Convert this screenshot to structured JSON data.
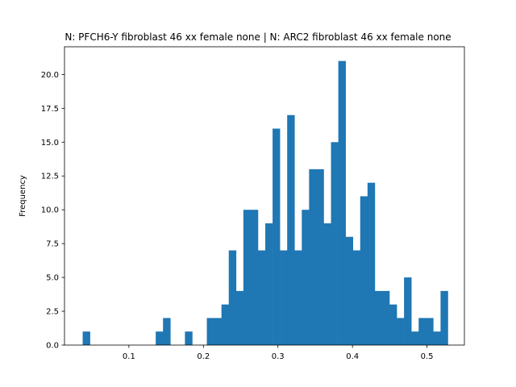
{
  "chart_data": {
    "type": "bar",
    "title": "N: PFCH6-Y fibroblast 46 xx female none | N: ARC2 fibroblast 46 xx female none",
    "xlabel": "",
    "ylabel": "Frequency",
    "xlim": [
      0.0136,
      0.5502
    ],
    "ylim": [
      0,
      22.05
    ],
    "grid": false,
    "legend": "none",
    "bar_color": "#1f77b4",
    "x_ticks": [
      {
        "value": 0.1,
        "label": "0.1"
      },
      {
        "value": 0.2,
        "label": "0.2"
      },
      {
        "value": 0.3,
        "label": "0.3"
      },
      {
        "value": 0.4,
        "label": "0.4"
      },
      {
        "value": 0.5,
        "label": "0.5"
      }
    ],
    "y_ticks": [
      {
        "value": 0,
        "label": "0.0"
      },
      {
        "value": 2.5,
        "label": "2.5"
      },
      {
        "value": 5,
        "label": "5.0"
      },
      {
        "value": 7.5,
        "label": "7.5"
      },
      {
        "value": 10,
        "label": "10.0"
      },
      {
        "value": 12.5,
        "label": "12.5"
      },
      {
        "value": 15,
        "label": "15.0"
      },
      {
        "value": 17.5,
        "label": "17.5"
      },
      {
        "value": 20,
        "label": "20.0"
      }
    ],
    "bin_edges": [
      0.038,
      0.0478,
      0.0576,
      0.0674,
      0.0772,
      0.087,
      0.0968,
      0.1066,
      0.1164,
      0.1262,
      0.136,
      0.1458,
      0.1556,
      0.1654,
      0.1752,
      0.185,
      0.1948,
      0.2046,
      0.2144,
      0.2242,
      0.234,
      0.2438,
      0.2536,
      0.2634,
      0.2732,
      0.283,
      0.2928,
      0.3026,
      0.3124,
      0.3222,
      0.332,
      0.3418,
      0.3516,
      0.3614,
      0.3712,
      0.381,
      0.3908,
      0.4006,
      0.4104,
      0.4202,
      0.43,
      0.4398,
      0.4496,
      0.4594,
      0.4692,
      0.479,
      0.4888,
      0.4986,
      0.5084,
      0.5182,
      0.528
    ],
    "counts": [
      1,
      0,
      0,
      0,
      0,
      0,
      0,
      0,
      0,
      0,
      1,
      2,
      0,
      0,
      1,
      0,
      0,
      2,
      2,
      3,
      7,
      4,
      10,
      10,
      7,
      9,
      16,
      7,
      17,
      7,
      10,
      13,
      13,
      9,
      15,
      21,
      8,
      7,
      11,
      12,
      4,
      4,
      3,
      2,
      5,
      1,
      2,
      2,
      1,
      4
    ]
  }
}
